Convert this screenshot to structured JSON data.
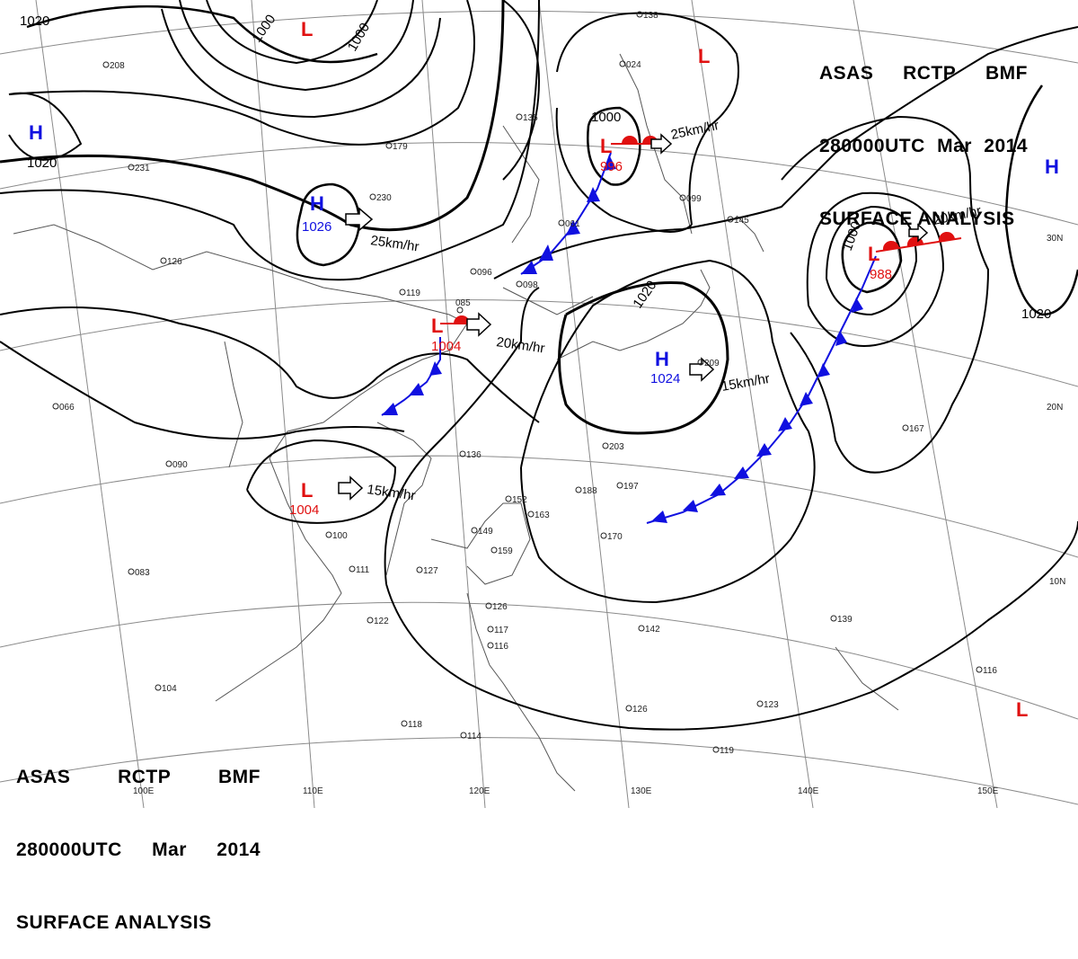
{
  "header_top": {
    "line1": [
      "ASAS",
      "RCTP",
      "BMF"
    ],
    "line2": [
      "280000UTC",
      "Mar",
      "2014"
    ],
    "line3": "SURFACE ANALYSIS"
  },
  "header_bottom": {
    "line1": [
      "ASAS",
      "RCTP",
      "BMF"
    ],
    "line2": [
      "280000UTC",
      "Mar",
      "2014"
    ],
    "line3": "SURFACE ANALYSIS"
  },
  "longitude_labels": [
    "100E",
    "110E",
    "120E",
    "130E",
    "140E",
    "150E"
  ],
  "latitude_labels": [
    "30N",
    "20N",
    "10N"
  ],
  "isobar_labels": [
    "1020",
    "1000",
    "1000",
    "1020",
    "1020",
    "1000",
    "1000",
    "1020"
  ],
  "pressure_centers": [
    {
      "type": "H",
      "value": "1026",
      "color": "#1010e0"
    },
    {
      "type": "H",
      "value": "1024",
      "color": "#1010e0"
    },
    {
      "type": "H",
      "value": "",
      "color": "#1010e0"
    },
    {
      "type": "H",
      "value": "",
      "color": "#1010e0"
    },
    {
      "type": "L",
      "value": "1004",
      "color": "#e01010"
    },
    {
      "type": "L",
      "value": "1004",
      "color": "#e01010"
    },
    {
      "type": "L",
      "value": "996",
      "color": "#e01010"
    },
    {
      "type": "L",
      "value": "988",
      "color": "#e01010"
    },
    {
      "type": "L",
      "value": "",
      "color": "#e01010"
    },
    {
      "type": "L",
      "value": "",
      "color": "#e01010"
    },
    {
      "type": "L",
      "value": "",
      "color": "#e01010"
    }
  ],
  "movement_labels": [
    "25km/hr",
    "20km/hr",
    "15km/hr",
    "15km/hr",
    "20km/hr",
    "25km/hr"
  ],
  "station_samples": [
    "066",
    "090",
    "083",
    "208",
    "231",
    "126",
    "179",
    "230",
    "135",
    "119",
    "085",
    "096",
    "098",
    "136",
    "152",
    "163",
    "170",
    "188",
    "197",
    "159",
    "149",
    "127",
    "111",
    "100",
    "122",
    "104",
    "118",
    "114",
    "126",
    "117",
    "116",
    "142",
    "126",
    "123",
    "119",
    "139",
    "167",
    "116",
    "203",
    "209",
    "145",
    "099",
    "024",
    "061",
    "138"
  ],
  "colors": {
    "high": "#1010e0",
    "low": "#e01010",
    "isobar": "#000000",
    "grid": "#777777",
    "coast": "#555555"
  }
}
